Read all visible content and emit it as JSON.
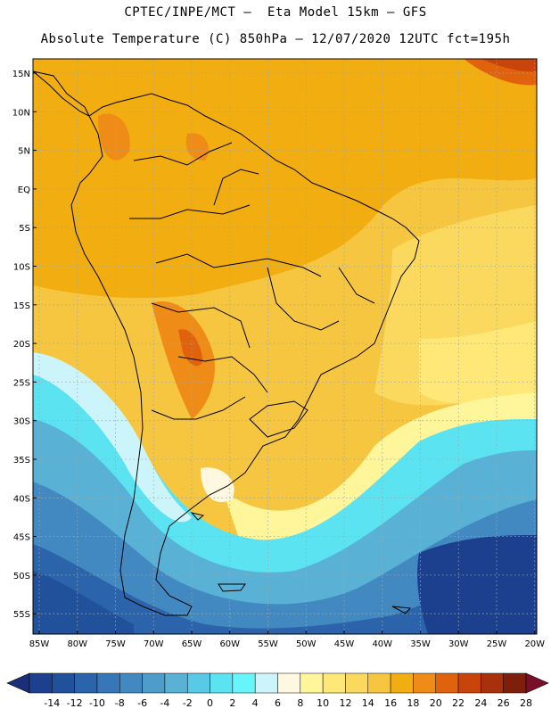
{
  "header": {
    "line1": "CPTEC/INPE/MCT –  Eta Model 15km – GFS",
    "line2": "Absolute Temperature (C) 850hPa – 12/07/2020 12UTC fct=195h"
  },
  "axes": {
    "lat_labels": [
      "15N",
      "10N",
      "5N",
      "EQ",
      "5S",
      "10S",
      "15S",
      "20S",
      "25S",
      "30S",
      "35S",
      "40S",
      "45S",
      "50S",
      "55S"
    ],
    "lon_labels": [
      "85W",
      "80W",
      "75W",
      "70W",
      "65W",
      "60W",
      "55W",
      "50W",
      "45W",
      "40W",
      "35W",
      "30W",
      "25W",
      "20W"
    ]
  },
  "colorbar": {
    "labels": [
      "-14",
      "-12",
      "-10",
      "-8",
      "-6",
      "-4",
      "-2",
      "0",
      "2",
      "4",
      "6",
      "8",
      "10",
      "12",
      "14",
      "16",
      "18",
      "20",
      "22",
      "24",
      "26",
      "28"
    ],
    "colors": [
      "#1c3f8e",
      "#22519c",
      "#2c64ab",
      "#3777b8",
      "#4289c2",
      "#4e9cca",
      "#59b1d6",
      "#58c9e6",
      "#5be3f2",
      "#66f5fb",
      "#ccf5fb",
      "#fff8e0",
      "#fff59a",
      "#ffe878",
      "#fbd95e",
      "#f6c641",
      "#f2ad10",
      "#ef8c17",
      "#e0620d",
      "#c9440b",
      "#a8300a",
      "#7d1f0a"
    ],
    "under_color": "#1b2f78",
    "over_color": "#7a0f2a"
  }
}
